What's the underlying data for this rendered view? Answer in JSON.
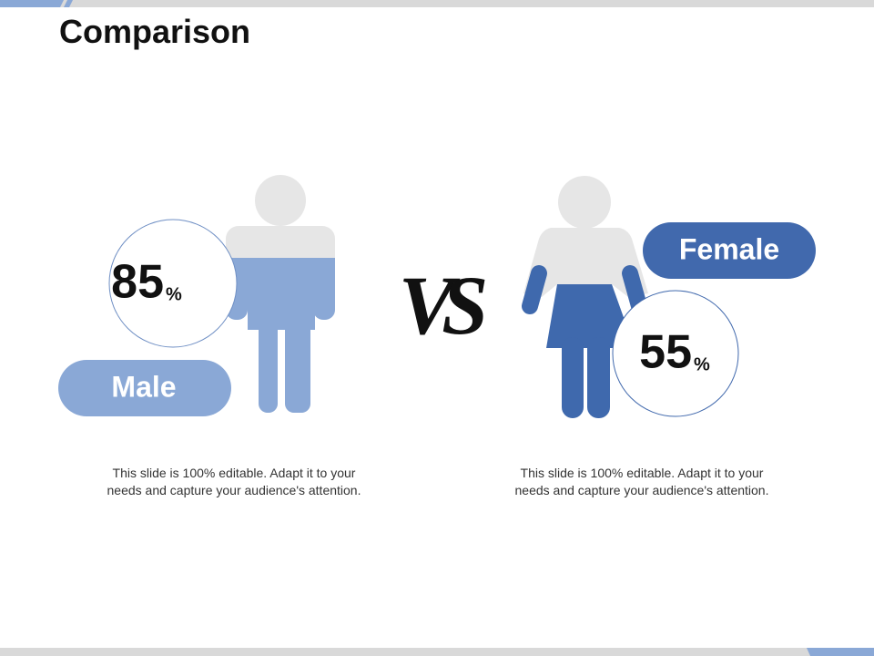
{
  "title": "Comparison",
  "vs": "VS",
  "panels": [
    {
      "label": "Male",
      "percent": 85,
      "unit": "%",
      "description": "This slide is 100% editable. Adapt it to your needs and capture your audience's attention."
    },
    {
      "label": "Female",
      "percent": 55,
      "unit": "%",
      "description": "This slide is 100% editable. Adapt it to your needs and capture your audience's attention."
    }
  ]
}
